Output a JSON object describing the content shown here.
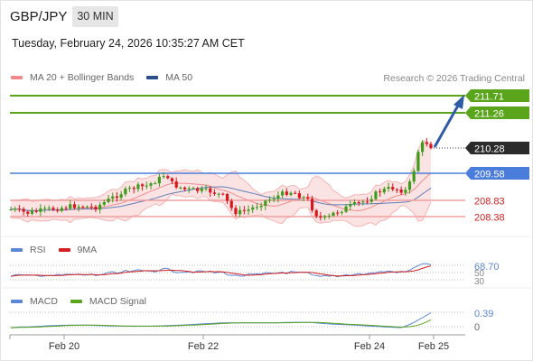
{
  "header": {
    "symbol": "GBP/JPY",
    "timeframe": "30 MIN",
    "datetime": "Tuesday, February 24, 2026 10:35:27 AM CET"
  },
  "price_panel": {
    "legend": [
      {
        "label": "MA 20 + Bollinger Bands",
        "color": "#f08a8a"
      },
      {
        "label": "MA 50",
        "color": "#2b4f8a"
      }
    ],
    "research": "Research © 2026 Trading Central",
    "levels": [
      {
        "label": "211.71",
        "style": "green-badge",
        "line": "#5aa51c"
      },
      {
        "label": "211.26",
        "style": "green-badge",
        "line": "#5aa51c"
      },
      {
        "label": "210.28",
        "style": "dark-badge",
        "line": "dotted"
      },
      {
        "label": "209.58",
        "style": "blue-badge",
        "line": "#4a7ddb"
      },
      {
        "label": "208.83",
        "style": "red-text",
        "line": "#f0a0a0"
      },
      {
        "label": "208.38",
        "style": "red-text",
        "line": "#f0a0a0"
      }
    ]
  },
  "rsi_panel": {
    "legend": [
      {
        "label": "RSI",
        "color": "#5b86d6"
      },
      {
        "label": "9MA",
        "color": "#d42020"
      }
    ],
    "value_label": "68.70",
    "tick_labels": [
      "70",
      "50",
      "30"
    ]
  },
  "macd_panel": {
    "legend": [
      {
        "label": "MACD",
        "color": "#5b86d6"
      },
      {
        "label": "MACD Signal",
        "color": "#5aa51c"
      }
    ],
    "value_label": "0.39",
    "zero_label": "0"
  },
  "x_axis": {
    "labels": [
      "Feb 20",
      "Feb 22",
      "Feb 24",
      "Feb 25"
    ]
  },
  "colors": {
    "green": "#5aa51c",
    "blue": "#4a7ddb",
    "red": "#d42020",
    "dark": "#2b2b2b",
    "candle_red": "#d9161d",
    "candle_green": "#3f9b1b",
    "arrow": "#2f5ca8"
  }
}
